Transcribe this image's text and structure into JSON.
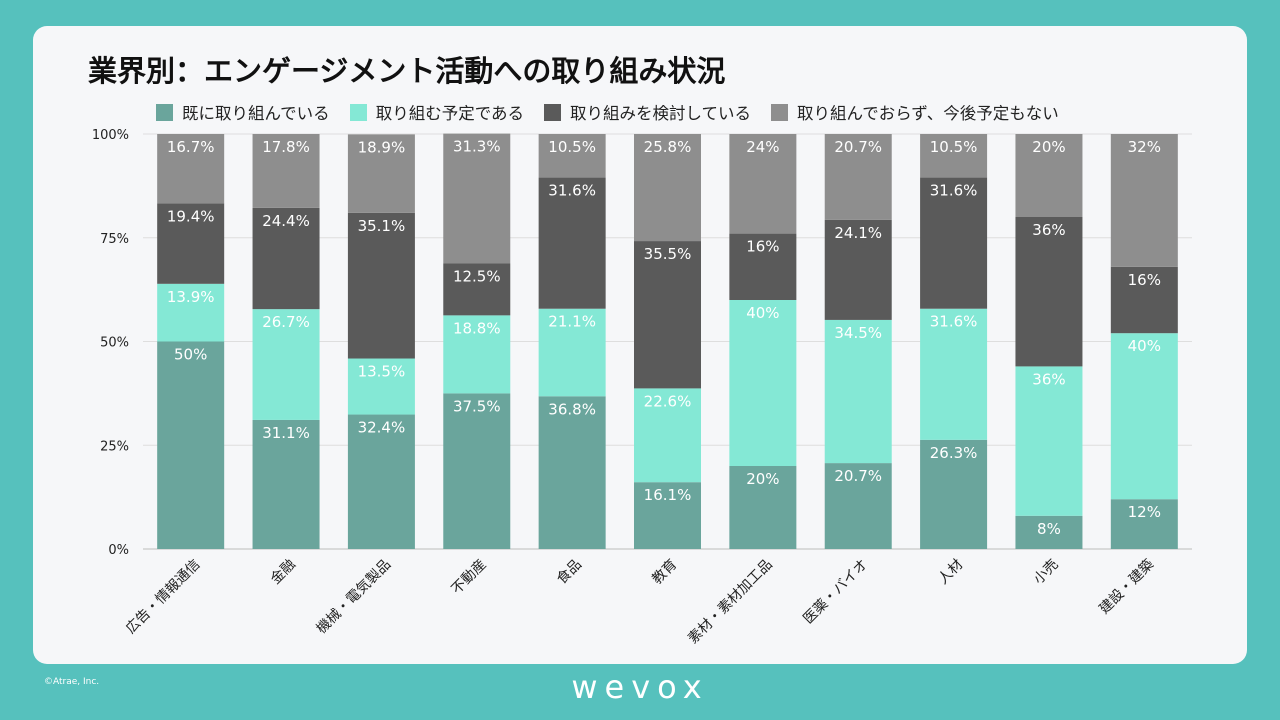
{
  "chart_data": {
    "type": "bar",
    "stacked": true,
    "percent": true,
    "title": "業界別：エンゲージメント活動への取り組み状況",
    "categories": [
      "広告・情報通信",
      "金融",
      "機械・電気製品",
      "不動産",
      "食品",
      "教育",
      "素材・素材加工品",
      "医薬・バイオ",
      "人材",
      "小売",
      "建設・建築"
    ],
    "series": [
      {
        "name": "既に取り組んでいる",
        "color": "#6aa59c",
        "label_color": "#ffffff",
        "values": [
          50,
          31.1,
          32.4,
          37.5,
          36.8,
          16.1,
          20,
          20.7,
          26.3,
          8,
          12
        ],
        "labels": [
          "50%",
          "31.1%",
          "32.4%",
          "37.5%",
          "36.8%",
          "16.1%",
          "20%",
          "20.7%",
          "26.3%",
          "8%",
          "12%"
        ]
      },
      {
        "name": "取り組む予定である",
        "color": "#84e8d5",
        "label_color": "#ffffff",
        "values": [
          13.9,
          26.7,
          13.5,
          18.8,
          21.1,
          22.6,
          40,
          34.5,
          31.6,
          36,
          40
        ],
        "labels": [
          "13.9%",
          "26.7%",
          "13.5%",
          "18.8%",
          "21.1%",
          "22.6%",
          "40%",
          "34.5%",
          "31.6%",
          "36%",
          "40%"
        ]
      },
      {
        "name": "取り組みを検討している",
        "color": "#5a5a5a",
        "label_color": "#ffffff",
        "values": [
          19.4,
          24.4,
          35.1,
          12.5,
          31.6,
          35.5,
          16,
          24.1,
          31.6,
          36,
          16
        ],
        "labels": [
          "19.4%",
          "24.4%",
          "35.1%",
          "12.5%",
          "31.6%",
          "35.5%",
          "16%",
          "24.1%",
          "31.6%",
          "36%",
          "16%"
        ]
      },
      {
        "name": "取り組んでおらず、今後予定もない",
        "color": "#8e8e8e",
        "label_color": "#ffffff",
        "values": [
          16.7,
          17.8,
          18.9,
          31.3,
          10.5,
          25.8,
          24,
          20.7,
          10.5,
          20,
          32
        ],
        "labels": [
          "16.7%",
          "17.8%",
          "18.9%",
          "31.3%",
          "10.5%",
          "25.8%",
          "24%",
          "20.7%",
          "10.5%",
          "20%",
          "32%"
        ]
      }
    ],
    "ylim": [
      0,
      100
    ],
    "yticks": [
      0,
      25,
      50,
      75,
      100
    ],
    "ytick_labels": [
      "0%",
      "25%",
      "50%",
      "75%",
      "100%"
    ],
    "grid": true,
    "legend_position": "top"
  },
  "footer": {
    "copyright": "©Atrae, Inc.",
    "brand": "wevox"
  }
}
